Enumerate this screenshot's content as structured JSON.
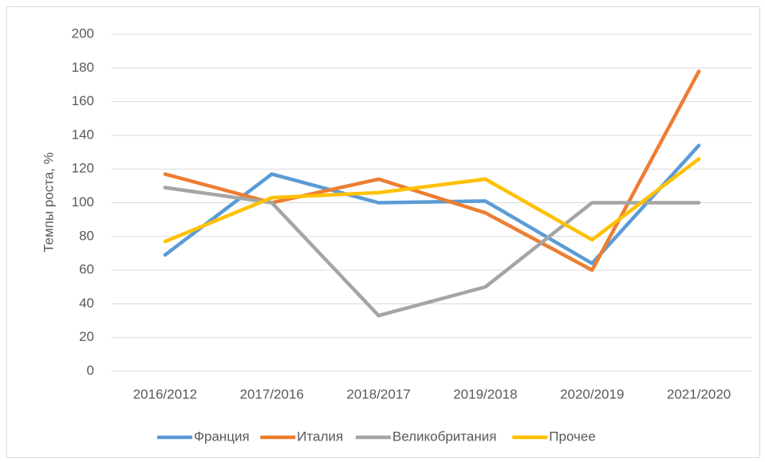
{
  "chart_data": {
    "type": "line",
    "y_label": "Темпы роста, %",
    "categories": [
      "2016/2012",
      "2017/2016",
      "2018/2017",
      "2019/2018",
      "2020/2019",
      "2021/2020"
    ],
    "series": [
      {
        "name": "Франция",
        "color": "#5b9bd5",
        "values": [
          69,
          117,
          100,
          101,
          64,
          134
        ]
      },
      {
        "name": "Италия",
        "color": "#ed7d31",
        "values": [
          117,
          100,
          114,
          94,
          60,
          178
        ]
      },
      {
        "name": "Великобритания",
        "color": "#a5a5a5",
        "values": [
          109,
          100,
          33,
          50,
          100,
          100
        ]
      },
      {
        "name": "Прочее",
        "color": "#ffc000",
        "values": [
          77,
          103,
          106,
          114,
          78,
          126
        ]
      }
    ],
    "ylim": [
      0,
      200
    ],
    "yticks": [
      0,
      20,
      40,
      60,
      80,
      100,
      120,
      140,
      160,
      180,
      200
    ],
    "grid": true,
    "legend": "bottom"
  }
}
